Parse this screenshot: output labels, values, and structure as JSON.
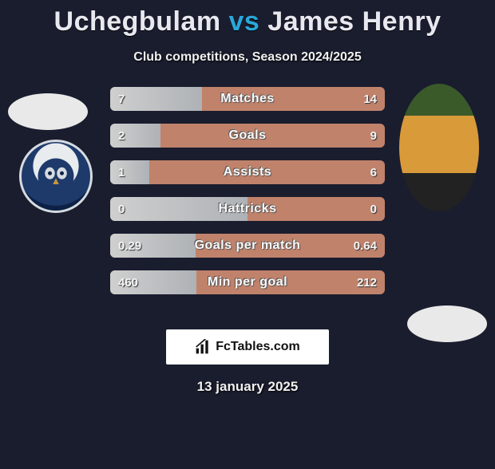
{
  "header": {
    "player1": "Uchegbulam",
    "vs": "vs",
    "player2": "James Henry"
  },
  "subtitle": "Club competitions, Season 2024/2025",
  "colors": {
    "bar_left_fill": "#b7bbbf",
    "bar_right_fill": "#c0826b",
    "accent": "#2aa7d9",
    "background": "#1a1d2e"
  },
  "bars": [
    {
      "label": "Matches",
      "left": "7",
      "right": "14",
      "left_pct": 33.3
    },
    {
      "label": "Goals",
      "left": "2",
      "right": "9",
      "left_pct": 18.2
    },
    {
      "label": "Assists",
      "left": "1",
      "right": "6",
      "left_pct": 14.3
    },
    {
      "label": "Hattricks",
      "left": "0",
      "right": "0",
      "left_pct": 50.0
    },
    {
      "label": "Goals per match",
      "left": "0.29",
      "right": "0.64",
      "left_pct": 31.2
    },
    {
      "label": "Min per goal",
      "left": "460",
      "right": "212",
      "left_pct": 31.5
    }
  ],
  "watermark": "FcTables.com",
  "date": "13 january 2025"
}
